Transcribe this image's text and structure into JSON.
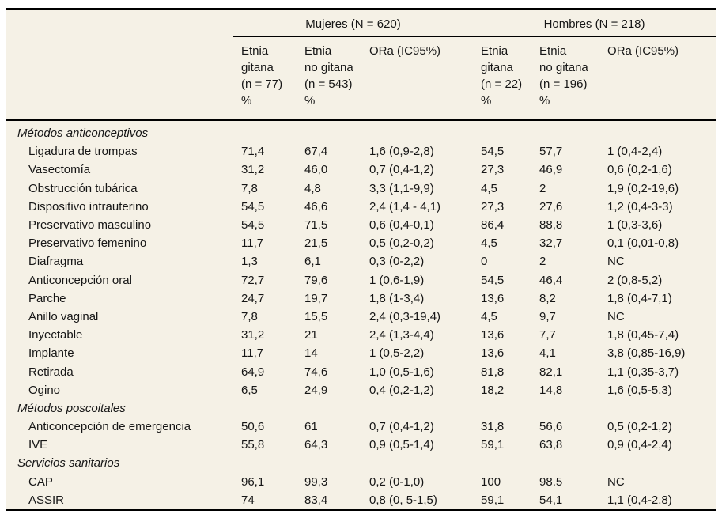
{
  "colors": {
    "table_background": "#f5f1e6",
    "text": "#161616",
    "border": "#000000",
    "page_background": "#ffffff"
  },
  "table": {
    "group_headers": [
      {
        "label": "Mujeres (N = 620)"
      },
      {
        "label": "Hombres (N = 218)"
      }
    ],
    "column_headers": [
      {
        "line1": "Etnia",
        "line2": "gitana",
        "line3": "(n = 77)",
        "line4": "%"
      },
      {
        "line1": "Etnia",
        "line2": "no gitana",
        "line3": "(n = 543)",
        "line4": "%"
      },
      {
        "line1": "ORa (IC95%)",
        "line2": "",
        "line3": "",
        "line4": ""
      },
      {
        "line1": "Etnia",
        "line2": "gitana",
        "line3": "(n = 22)",
        "line4": "%"
      },
      {
        "line1": "Etnia",
        "line2": "no gitana",
        "line3": "(n = 196)",
        "line4": "%"
      },
      {
        "line1": "ORa (IC95%)",
        "line2": "",
        "line3": "",
        "line4": ""
      }
    ],
    "rows": [
      {
        "type": "section",
        "label": "Métodos anticonceptivos",
        "values": [
          "",
          "",
          "",
          "",
          "",
          ""
        ]
      },
      {
        "type": "item",
        "label": "Ligadura de trompas",
        "values": [
          "71,4",
          "67,4",
          "1,6 (0,9-2,8)",
          "54,5",
          "57,7",
          "1 (0,4-2,4)"
        ]
      },
      {
        "type": "item",
        "label": "Vasectomía",
        "values": [
          "31,2",
          "46,0",
          "0,7 (0,4-1,2)",
          "27,3",
          "46,9",
          "0,6 (0,2-1,6)"
        ]
      },
      {
        "type": "item",
        "label": "Obstrucción tubárica",
        "values": [
          "7,8",
          "4,8",
          "3,3 (1,1-9,9)",
          "4,5",
          "2",
          "1,9 (0,2-19,6)"
        ]
      },
      {
        "type": "item",
        "label": "Dispositivo intrauterino",
        "values": [
          "54,5",
          "46,6",
          "2,4 (1,4 - 4,1)",
          "27,3",
          "27,6",
          "1,2 (0,4-3-3)"
        ]
      },
      {
        "type": "item",
        "label": "Preservativo masculino",
        "values": [
          "54,5",
          "71,5",
          "0,6 (0,4-0,1)",
          "86,4",
          "88,8",
          "1 (0,3-3,6)"
        ]
      },
      {
        "type": "item",
        "label": "Preservativo femenino",
        "values": [
          "11,7",
          "21,5",
          "0,5 (0,2-0,2)",
          "4,5",
          "32,7",
          "0,1 (0,01-0,8)"
        ]
      },
      {
        "type": "item",
        "label": "Diafragma",
        "values": [
          "1,3",
          "6,1",
          "0,3 (0-2,2)",
          "0",
          "2",
          "NC"
        ]
      },
      {
        "type": "item",
        "label": "Anticoncepción oral",
        "values": [
          "72,7",
          "79,6",
          "1 (0,6-1,9)",
          "54,5",
          "46,4",
          "2 (0,8-5,2)"
        ]
      },
      {
        "type": "item",
        "label": "Parche",
        "values": [
          "24,7",
          "19,7",
          "1,8 (1-3,4)",
          "13,6",
          "8,2",
          "1,8 (0,4-7,1)"
        ]
      },
      {
        "type": "item",
        "label": "Anillo vaginal",
        "values": [
          "7,8",
          "15,5",
          "2,4 (0,3-19,4)",
          "4,5",
          "9,7",
          "NC"
        ]
      },
      {
        "type": "item",
        "label": "Inyectable",
        "values": [
          "31,2",
          "21",
          "2,4 (1,3-4,4)",
          "13,6",
          "7,7",
          "1,8 (0,45-7,4)"
        ]
      },
      {
        "type": "item",
        "label": "Implante",
        "values": [
          "11,7",
          "14",
          "1 (0,5-2,2)",
          "13,6",
          "4,1",
          "3,8 (0,85-16,9)"
        ]
      },
      {
        "type": "item",
        "label": "Retirada",
        "values": [
          "64,9",
          "74,6",
          "1,0 (0,5-1,6)",
          "81,8",
          "82,1",
          "1,1 (0,35-3,7)"
        ]
      },
      {
        "type": "item",
        "label": "Ogino",
        "values": [
          "6,5",
          "24,9",
          "0,4 (0,2-1,2)",
          "18,2",
          "14,8",
          "1,6 (0,5-5,3)"
        ]
      },
      {
        "type": "section",
        "label": "Métodos poscoitales",
        "values": [
          "",
          "",
          "",
          "",
          "",
          ""
        ]
      },
      {
        "type": "item",
        "label": "Anticoncepción de emergencia",
        "values": [
          "50,6",
          "61",
          "0,7 (0,4-1,2)",
          "31,8",
          "56,6",
          "0,5 (0,2-1,2)"
        ]
      },
      {
        "type": "item",
        "label": "IVE",
        "values": [
          "55,8",
          "64,3",
          "0,9 (0,5-1,4)",
          "59,1",
          "63,8",
          "0,9 (0,4-2,4)"
        ]
      },
      {
        "type": "section",
        "label": "Servicios sanitarios",
        "values": [
          "",
          "",
          "",
          "",
          "",
          ""
        ]
      },
      {
        "type": "item",
        "label": "CAP",
        "values": [
          "96,1",
          "99,3",
          "0,2 (0-1,0)",
          "100",
          "98.5",
          "NC"
        ]
      },
      {
        "type": "item",
        "label": "ASSIR",
        "values": [
          "74",
          "83,4",
          "0,8 (0, 5-1,5)",
          "59,1",
          "54,1",
          "1,1 (0,4-2,8)"
        ]
      }
    ]
  }
}
